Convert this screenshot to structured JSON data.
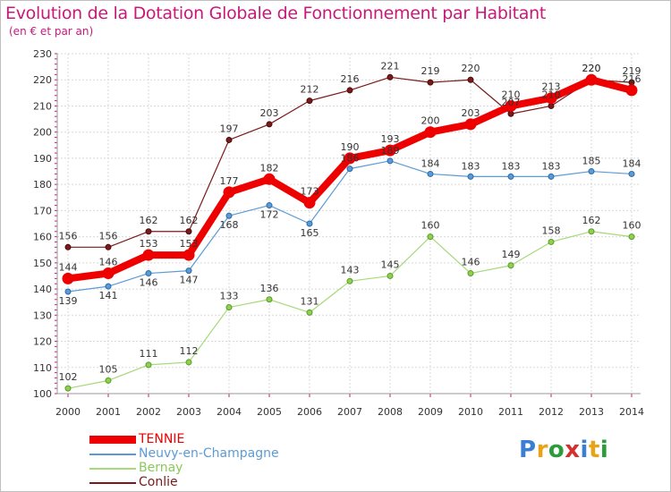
{
  "chart_data": {
    "type": "line",
    "title": "Evolution de la Dotation Globale de Fonctionnement par Habitant",
    "subtitle": "(en € et par an)",
    "x": [
      "2000",
      "2001",
      "2002",
      "2003",
      "2004",
      "2005",
      "2006",
      "2007",
      "2008",
      "2009",
      "2010",
      "2011",
      "2012",
      "2013",
      "2014"
    ],
    "ylim": [
      100,
      230
    ],
    "yticks": [
      100,
      110,
      120,
      130,
      140,
      150,
      160,
      170,
      180,
      190,
      200,
      210,
      220,
      230
    ],
    "grid": true,
    "series": [
      {
        "name": "Conlie",
        "color": "#7a1a1a",
        "values": [
          156,
          156,
          162,
          162,
          197,
          203,
          212,
          216,
          221,
          219,
          220,
          207,
          210,
          220,
          219
        ],
        "labels": [
          "156",
          "156",
          "162",
          "162",
          "197",
          "203",
          "212",
          "216",
          "221",
          "219",
          "220",
          "207",
          "210",
          "220",
          "219"
        ]
      },
      {
        "name": "Bernay",
        "color": "#a6d97a",
        "values": [
          102,
          105,
          111,
          112,
          133,
          136,
          131,
          143,
          145,
          160,
          146,
          149,
          158,
          162,
          160
        ],
        "labels": [
          "102",
          "105",
          "111",
          "112",
          "133",
          "136",
          "131",
          "143",
          "145",
          "160",
          "146",
          "149",
          "158",
          "162",
          "160"
        ]
      },
      {
        "name": "Neuvy-en-Champagne",
        "color": "#5b9bd5",
        "values": [
          139,
          141,
          146,
          147,
          168,
          172,
          165,
          186,
          189,
          184,
          183,
          183,
          183,
          185,
          184
        ],
        "labels": [
          "139",
          "141",
          "146",
          "147",
          "168",
          "172",
          "165",
          "186",
          "189",
          "184",
          "183",
          "183",
          "183",
          "185",
          "184"
        ]
      },
      {
        "name": "TENNIE",
        "color": "#ee0000",
        "values": [
          144,
          146,
          153,
          153,
          177,
          182,
          173,
          190,
          193,
          200,
          203,
          210,
          213,
          220,
          216
        ],
        "labels": [
          "144",
          "146",
          "153",
          "153",
          "177",
          "182",
          "173",
          "190",
          "193",
          "200",
          "203",
          "210",
          "213",
          "220",
          "216"
        ]
      }
    ],
    "legend": {
      "position": "bottom-left",
      "order": [
        "TENNIE",
        "Neuvy-en-Champagne",
        "Bernay",
        "Conlie"
      ]
    }
  },
  "legend_items": [
    {
      "name": "TENNIE",
      "color": "#ee0000"
    },
    {
      "name": "Neuvy-en-Champagne",
      "color": "#5b9bd5"
    },
    {
      "name": "Bernay",
      "color": "#a6d97a"
    },
    {
      "name": "Conlie",
      "color": "#7a1a1a"
    }
  ],
  "logo": {
    "text": "Proxiti",
    "letter_colors": [
      "#3b7fd4",
      "#e8a317",
      "#2a9d3a",
      "#d62f2f",
      "#3b7fd4",
      "#e8a317",
      "#2a9d3a"
    ]
  }
}
